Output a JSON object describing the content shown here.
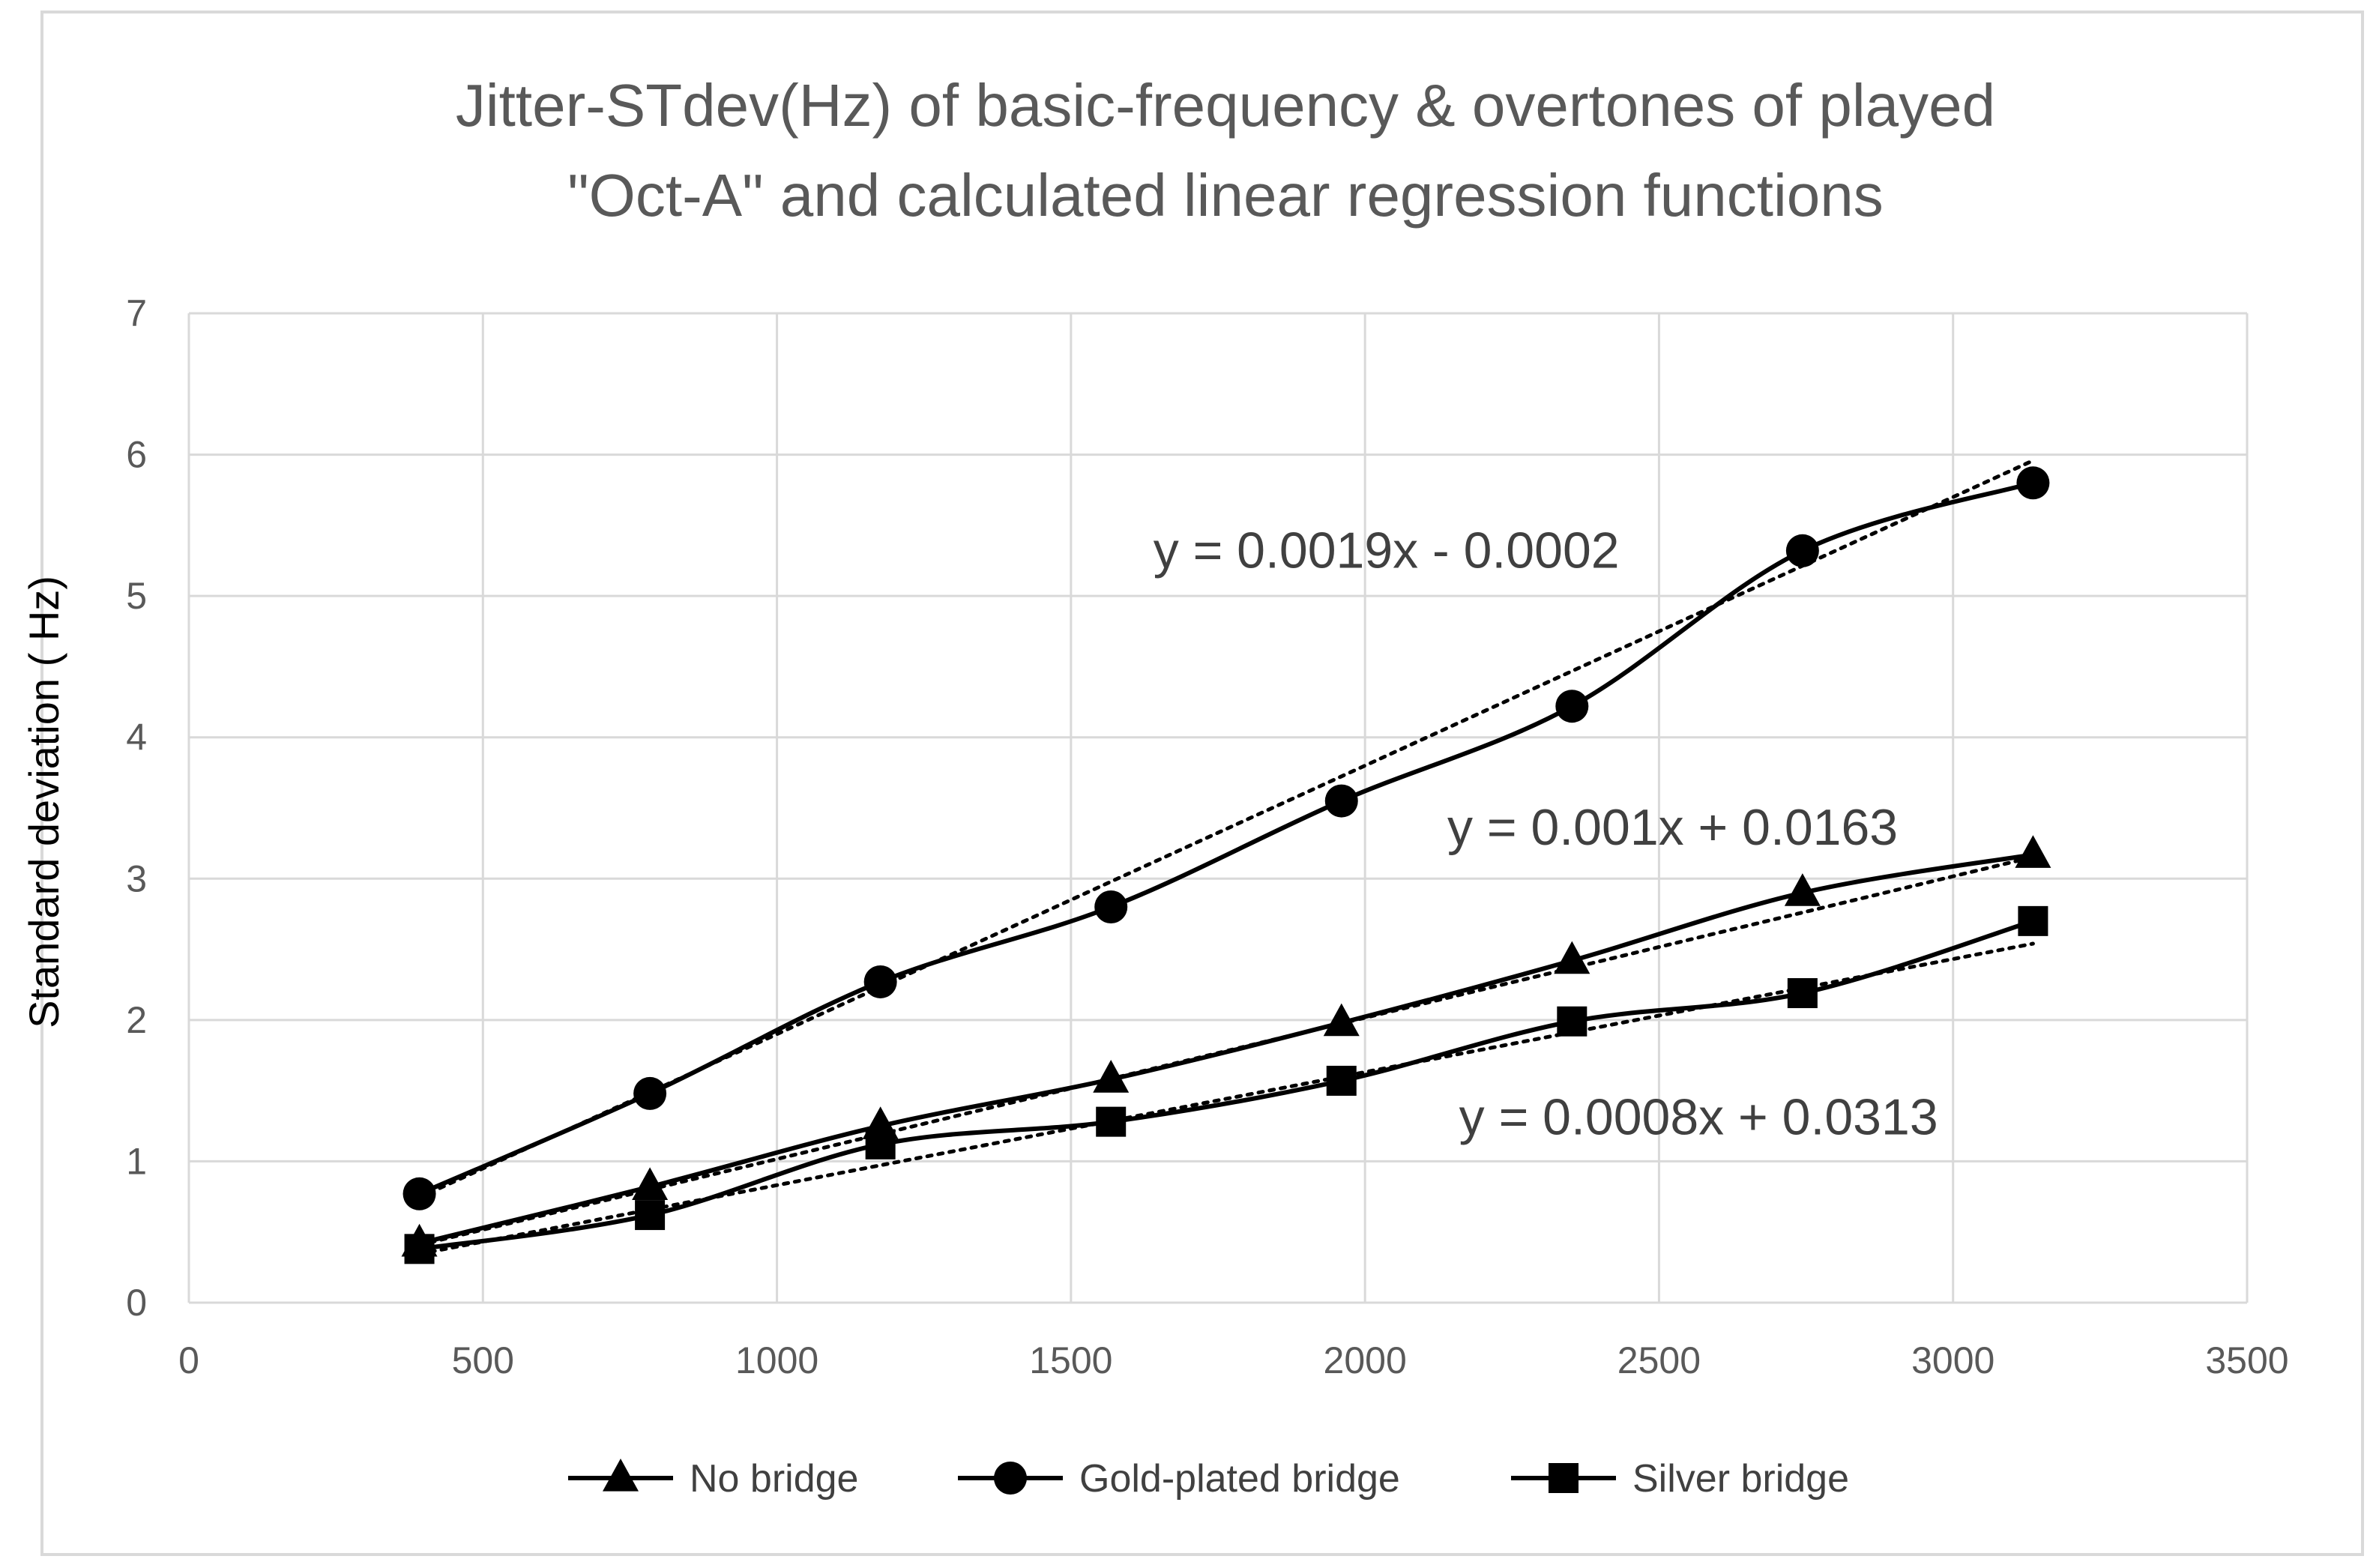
{
  "chart_data": {
    "type": "line",
    "title": "Jitter-STdev(Hz) of basic-frequency & overtones of played \"Oct-A\" and calculated linear regression functions",
    "title_lines": [
      "Jitter-STdev(Hz) of basic-frequency & overtones of played",
      "\"Oct-A\" and calculated linear regression functions"
    ],
    "xlabel": "",
    "ylabel": "Standard deviation ( Hz)",
    "xlim": [
      0,
      3500
    ],
    "ylim": [
      0,
      7
    ],
    "x_ticks": [
      0,
      500,
      1000,
      1500,
      2000,
      2500,
      3000,
      3500
    ],
    "y_ticks": [
      0,
      1,
      2,
      3,
      4,
      5,
      6,
      7
    ],
    "grid": true,
    "legend_position": "bottom",
    "series": [
      {
        "name": "No bridge",
        "marker": "triangle",
        "x": [
          392,
          784,
          1176,
          1568,
          1960,
          2352,
          2744,
          3136
        ],
        "y": [
          0.42,
          0.82,
          1.25,
          1.58,
          1.98,
          2.42,
          2.9,
          3.17
        ],
        "trendline": {
          "slope": 0.001,
          "intercept": 0.0163
        }
      },
      {
        "name": "Gold-plated bridge",
        "marker": "circle",
        "x": [
          392,
          784,
          1176,
          1568,
          1960,
          2352,
          2744,
          3136
        ],
        "y": [
          0.77,
          1.48,
          2.27,
          2.8,
          3.55,
          4.22,
          5.32,
          5.8
        ],
        "trendline": {
          "slope": 0.0019,
          "intercept": -0.0002
        }
      },
      {
        "name": "Silver bridge",
        "marker": "square",
        "x": [
          392,
          784,
          1176,
          1568,
          1960,
          2352,
          2744,
          3136
        ],
        "y": [
          0.38,
          0.62,
          1.12,
          1.28,
          1.57,
          1.99,
          2.19,
          2.7
        ],
        "trendline": {
          "slope": 0.0008,
          "intercept": 0.0313
        }
      }
    ],
    "annotations": [
      {
        "text": "y = 0.0019x - 0.0002",
        "x": 1640,
        "y": 5.2
      },
      {
        "text": "y = 0.001x + 0.0163",
        "x": 2140,
        "y": 3.24
      },
      {
        "text": "y = 0.0008x + 0.0313",
        "x": 2160,
        "y": 1.19
      }
    ]
  }
}
